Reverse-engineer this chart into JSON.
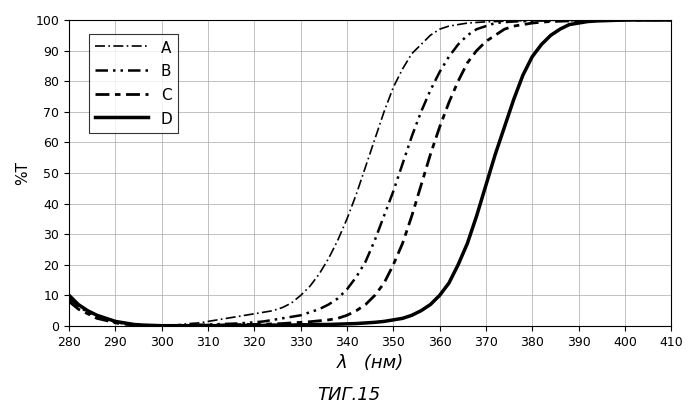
{
  "title": "",
  "xlabel": "λ   (нм)",
  "ylabel": "%T",
  "caption": "ΤИГ.15",
  "xlim": [
    280,
    410
  ],
  "ylim": [
    0,
    100
  ],
  "xticks": [
    280,
    290,
    300,
    310,
    320,
    330,
    340,
    350,
    360,
    370,
    380,
    390,
    400,
    410
  ],
  "yticks": [
    0,
    10,
    20,
    30,
    40,
    50,
    60,
    70,
    80,
    90,
    100
  ],
  "curves": {
    "A": {
      "label": "A",
      "color": "#000000",
      "linestyle": "dashdot",
      "linewidth": 1.5,
      "x": [
        280,
        282,
        284,
        286,
        288,
        290,
        292,
        294,
        296,
        298,
        300,
        302,
        304,
        306,
        308,
        310,
        312,
        314,
        316,
        318,
        320,
        322,
        324,
        326,
        328,
        330,
        332,
        334,
        336,
        338,
        340,
        342,
        344,
        346,
        348,
        350,
        352,
        354,
        356,
        358,
        360,
        362,
        364,
        366,
        368,
        370,
        372,
        374,
        376,
        378,
        380,
        382,
        384,
        386,
        388,
        390,
        392,
        394,
        396,
        398,
        400,
        402,
        404,
        406,
        408,
        410
      ],
      "y": [
        10,
        7,
        5,
        3.5,
        2.5,
        1.5,
        1.0,
        0.5,
        0.3,
        0.2,
        0.2,
        0.2,
        0.5,
        0.8,
        1.0,
        1.5,
        2.0,
        2.5,
        3.0,
        3.5,
        4.0,
        4.5,
        5.0,
        6.0,
        7.5,
        10,
        13,
        17,
        22,
        28,
        35,
        43,
        52,
        61,
        70,
        78,
        84,
        89,
        92,
        95,
        97,
        98,
        98.5,
        99,
        99.2,
        99.4,
        99.5,
        99.6,
        99.7,
        99.8,
        99.8,
        99.9,
        99.9,
        99.9,
        99.9,
        100,
        100,
        100,
        100,
        100,
        100,
        100,
        100,
        100,
        100,
        100
      ]
    },
    "B": {
      "label": "B",
      "color": "#000000",
      "linestyle": "dashdot",
      "linewidth": 2.5,
      "x": [
        280,
        282,
        284,
        286,
        288,
        290,
        292,
        294,
        296,
        298,
        300,
        302,
        304,
        306,
        308,
        310,
        312,
        314,
        316,
        318,
        320,
        322,
        324,
        326,
        328,
        330,
        332,
        334,
        336,
        338,
        340,
        342,
        344,
        346,
        348,
        350,
        352,
        354,
        356,
        358,
        360,
        362,
        364,
        366,
        368,
        370,
        372,
        374,
        376,
        378,
        380,
        382,
        384,
        386,
        388,
        390,
        392,
        394,
        396,
        398,
        400,
        402,
        404,
        406,
        408,
        410
      ],
      "y": [
        9,
        6.5,
        4.5,
        3.0,
        2.0,
        1.2,
        0.8,
        0.4,
        0.2,
        0.1,
        0.1,
        0.1,
        0.2,
        0.3,
        0.4,
        0.5,
        0.6,
        0.7,
        0.8,
        1.0,
        1.2,
        1.5,
        2.0,
        2.5,
        3.0,
        3.5,
        4.5,
        5.5,
        7.0,
        9.0,
        12,
        16,
        21,
        28,
        36,
        44,
        53,
        62,
        70,
        77,
        83,
        88,
        92,
        95,
        97,
        98,
        99,
        99.3,
        99.5,
        99.6,
        99.7,
        99.8,
        99.8,
        99.9,
        99.9,
        99.9,
        100,
        100,
        100,
        100,
        100,
        100,
        100,
        100,
        100,
        100
      ]
    },
    "C": {
      "label": "C",
      "color": "#000000",
      "linestyle": "dashed",
      "linewidth": 2.5,
      "x": [
        280,
        282,
        284,
        286,
        288,
        290,
        292,
        294,
        296,
        298,
        300,
        302,
        304,
        306,
        308,
        310,
        312,
        314,
        316,
        318,
        320,
        322,
        324,
        326,
        328,
        330,
        332,
        334,
        336,
        338,
        340,
        342,
        344,
        346,
        348,
        350,
        352,
        354,
        356,
        358,
        360,
        362,
        364,
        366,
        368,
        370,
        372,
        374,
        376,
        378,
        380,
        382,
        384,
        386,
        388,
        390,
        392,
        394,
        396,
        398,
        400,
        402,
        404,
        406,
        408,
        410
      ],
      "y": [
        8,
        5.5,
        4.0,
        2.5,
        1.8,
        1.0,
        0.6,
        0.3,
        0.2,
        0.1,
        0.1,
        0.1,
        0.1,
        0.2,
        0.2,
        0.3,
        0.3,
        0.4,
        0.4,
        0.5,
        0.5,
        0.6,
        0.7,
        0.8,
        1.0,
        1.2,
        1.4,
        1.7,
        2.0,
        2.5,
        3.5,
        5.0,
        7.0,
        10,
        14,
        20,
        27,
        36,
        46,
        56,
        65,
        73,
        80,
        86,
        90,
        93,
        95,
        97,
        98,
        98.5,
        99,
        99.3,
        99.5,
        99.6,
        99.7,
        99.8,
        99.8,
        99.9,
        99.9,
        100,
        100,
        100,
        100,
        100,
        100,
        100
      ]
    },
    "D": {
      "label": "D",
      "color": "#000000",
      "linestyle": "solid",
      "linewidth": 2.5,
      "x": [
        280,
        282,
        284,
        286,
        288,
        290,
        292,
        294,
        296,
        298,
        300,
        302,
        304,
        306,
        308,
        310,
        312,
        314,
        316,
        318,
        320,
        322,
        324,
        326,
        328,
        330,
        332,
        334,
        336,
        338,
        340,
        342,
        344,
        346,
        348,
        350,
        352,
        354,
        356,
        358,
        360,
        362,
        364,
        366,
        368,
        370,
        372,
        374,
        376,
        378,
        380,
        382,
        384,
        386,
        388,
        390,
        392,
        394,
        396,
        398,
        400,
        402,
        404,
        406,
        408,
        410
      ],
      "y": [
        10,
        7,
        5,
        3.5,
        2.5,
        1.5,
        1.0,
        0.5,
        0.3,
        0.2,
        0.1,
        0.1,
        0.1,
        0.1,
        0.1,
        0.1,
        0.1,
        0.1,
        0.2,
        0.2,
        0.2,
        0.2,
        0.3,
        0.3,
        0.3,
        0.4,
        0.4,
        0.5,
        0.5,
        0.6,
        0.7,
        0.8,
        1.0,
        1.2,
        1.5,
        2.0,
        2.5,
        3.5,
        5.0,
        7.0,
        10,
        14,
        20,
        27,
        36,
        46,
        56,
        65,
        74,
        82,
        88,
        92,
        95,
        97,
        98.5,
        99,
        99.5,
        99.7,
        99.8,
        99.9,
        100,
        100,
        100,
        100,
        100,
        100
      ]
    }
  },
  "legend_order": [
    "A",
    "B",
    "C",
    "D"
  ],
  "background_color": "#ffffff",
  "grid_color": "#aaaaaa"
}
